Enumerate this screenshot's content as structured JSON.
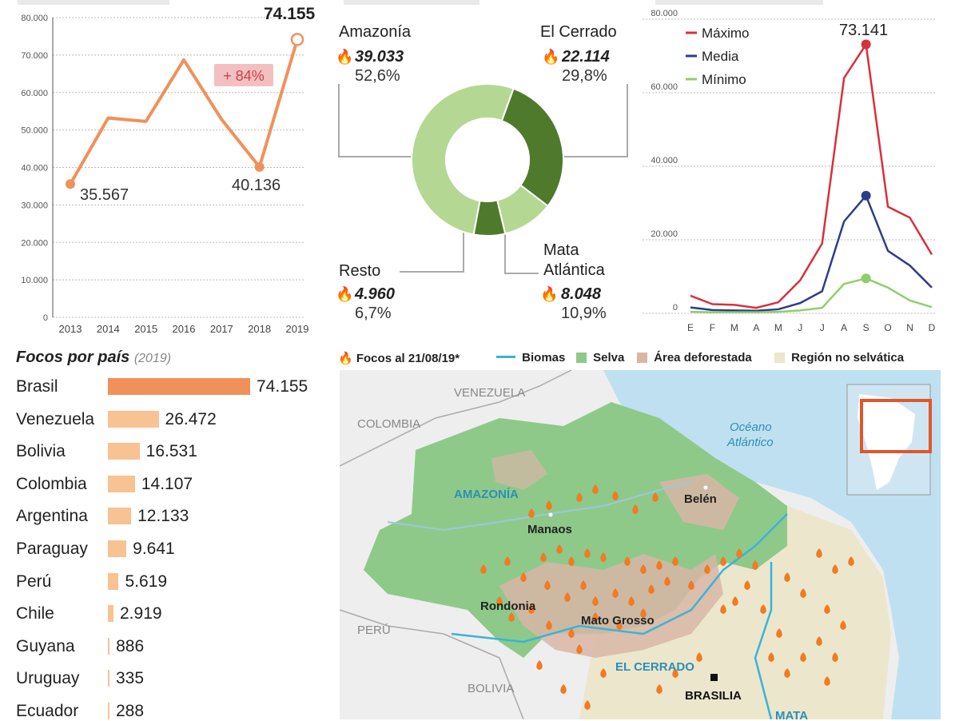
{
  "line_chart": {
    "y_ticks": [
      "80.000",
      "70.000",
      "60.000",
      "50.000",
      "40.000",
      "30.000",
      "20.000",
      "10.000",
      "0"
    ],
    "x_ticks": [
      "2013",
      "2014",
      "2015",
      "2016",
      "2017",
      "2018",
      "2019"
    ],
    "label_2013": "35.567",
    "label_2018": "40.136",
    "label_2019": "74.155",
    "change_badge": "+ 84%"
  },
  "donut": {
    "amazonia": {
      "name": "Amazonía",
      "value": "39.033",
      "pct": "52,6%"
    },
    "cerrado": {
      "name": "El Cerrado",
      "value": "22.114",
      "pct": "29,8%"
    },
    "resto": {
      "name": "Resto",
      "value": "4.960",
      "pct": "6,7%"
    },
    "mata": {
      "name1": "Mata",
      "name2": "Atlántica",
      "value": "8.048",
      "pct": "10,9%"
    }
  },
  "monthly_chart": {
    "y_ticks": [
      "80.000",
      "60.000",
      "40.000",
      "20.000",
      "0"
    ],
    "months": [
      "E",
      "F",
      "M",
      "A",
      "M",
      "J",
      "J",
      "A",
      "S",
      "O",
      "N",
      "D"
    ],
    "legend": [
      "Máximo",
      "Media",
      "Mínimo"
    ],
    "peak_label": "73.141"
  },
  "bars": {
    "title": "Focos por país",
    "year": "(2019)",
    "rows": [
      {
        "country": "Brasil",
        "label": "74.155"
      },
      {
        "country": "Venezuela",
        "label": "26.472"
      },
      {
        "country": "Bolivia",
        "label": "16.531"
      },
      {
        "country": "Colombia",
        "label": "14.107"
      },
      {
        "country": "Argentina",
        "label": "12.133"
      },
      {
        "country": "Paraguay",
        "label": "9.641"
      },
      {
        "country": "Perú",
        "label": "5.619"
      },
      {
        "country": "Chile",
        "label": "2.919"
      },
      {
        "country": "Guyana",
        "label": "886"
      },
      {
        "country": "Uruguay",
        "label": "335"
      },
      {
        "country": "Ecuador",
        "label": "288"
      }
    ]
  },
  "map": {
    "legend": [
      "Focos al 21/08/19*",
      "Biomas",
      "Selva",
      "Área deforestada",
      "Región no selvática"
    ],
    "labels": {
      "venezuela": "VENEZUELA",
      "colombia": "COLOMBIA",
      "peru": "PERÚ",
      "bolivia": "BOLIVIA",
      "amazonia": "AMAZONÍA",
      "cerrado": "EL CERRADO",
      "ocean1": "Océano",
      "ocean2": "Atlántico",
      "manaos": "Manaos",
      "belen": "Belén",
      "rondonia": "Rondonia",
      "matogrosso": "Mato Grosso",
      "brasilia": "BRASILIA",
      "mata_partial": "MATA"
    }
  },
  "colors": {
    "orange": "#f0915a",
    "orange_light": "#f7c392",
    "line_max": "#d9303a",
    "line_mean": "#2c3d8c",
    "line_min": "#8fce6b",
    "donut_light": "#b4d894",
    "donut_dark": "#4f7a2c",
    "forest": "#8ec98a",
    "ocean": "#bfe0f0",
    "deforested": "#d8b6a6",
    "nonforest": "#ece6cc",
    "badge": "#f2c0c0",
    "badge_text": "#d1404a"
  },
  "chart_data": [
    {
      "type": "line",
      "x": [
        2013,
        2014,
        2015,
        2016,
        2017,
        2018,
        2019
      ],
      "series": [
        {
          "values": [
            35567,
            53200,
            52300,
            68700,
            52800,
            40136,
            74155
          ]
        }
      ],
      "ylim": [
        0,
        80000
      ],
      "annotations": [
        "35.567",
        "40.136",
        "74.155",
        "+ 84%"
      ]
    },
    {
      "type": "pie",
      "categories": [
        "Amazonía",
        "El Cerrado",
        "Mata Atlántica",
        "Resto"
      ],
      "values": [
        39033,
        22114,
        8048,
        4960
      ],
      "percent_labels": [
        "52,6%",
        "29,8%",
        "10,9%",
        "6,7%"
      ]
    },
    {
      "type": "line",
      "categories": [
        "E",
        "F",
        "M",
        "A",
        "M",
        "J",
        "J",
        "A",
        "S",
        "O",
        "N",
        "D"
      ],
      "ylim": [
        0,
        80000
      ],
      "series": [
        {
          "name": "Máximo",
          "values": [
            4800,
            2500,
            2300,
            1500,
            3000,
            9000,
            19000,
            64000,
            73141,
            29000,
            26000,
            16000
          ]
        },
        {
          "name": "Media",
          "values": [
            1600,
            900,
            800,
            700,
            1100,
            2800,
            6000,
            25000,
            32000,
            17000,
            13000,
            7000
          ]
        },
        {
          "name": "Mínimo",
          "values": [
            400,
            300,
            300,
            300,
            400,
            800,
            1500,
            8000,
            9500,
            7000,
            3500,
            1700
          ]
        }
      ],
      "peak_label": "73.141",
      "legend_position": "top-left"
    },
    {
      "type": "bar",
      "categories": [
        "Brasil",
        "Venezuela",
        "Bolivia",
        "Colombia",
        "Argentina",
        "Paraguay",
        "Perú",
        "Chile",
        "Guyana",
        "Uruguay",
        "Ecuador"
      ],
      "values": [
        74155,
        26472,
        16531,
        14107,
        12133,
        9641,
        5619,
        2919,
        886,
        335,
        288
      ],
      "title": "Focos por país (2019)"
    }
  ]
}
